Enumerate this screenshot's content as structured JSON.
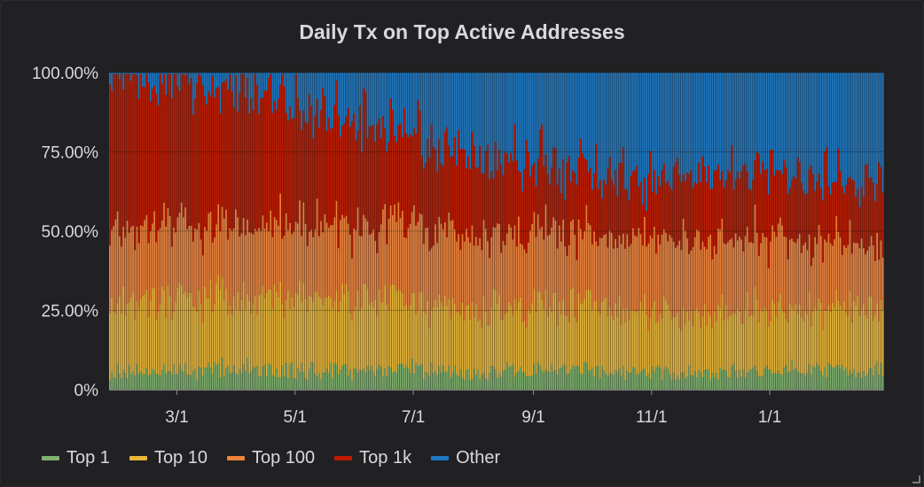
{
  "panel": {
    "title": "Daily Tx on Top Active Addresses"
  },
  "chart_data": {
    "type": "bar",
    "stacked": true,
    "percent": true,
    "title": "Daily Tx on Top Active Addresses",
    "xlabel": "",
    "ylabel": "",
    "ylim": [
      0,
      100
    ],
    "y_ticks": [
      "0%",
      "25.00%",
      "50.00%",
      "75.00%",
      "100.00%"
    ],
    "x_tick_labels": [
      "3/1",
      "5/1",
      "7/1",
      "9/1",
      "11/1",
      "1/1"
    ],
    "x_tick_day_offsets": [
      35,
      96,
      157,
      219,
      280,
      341
    ],
    "days": 400,
    "grid": true,
    "legend_position": "bottom-left",
    "series": [
      {
        "name": "Top 1",
        "color": "#7eb26d",
        "approx_share_percent": 6,
        "profile": [
          5,
          5,
          6,
          5,
          6,
          5,
          6,
          6,
          5,
          6,
          7,
          6
        ]
      },
      {
        "name": "Top 10",
        "color": "#eab839",
        "approx_share_percent": 21,
        "profile": [
          21,
          21,
          20,
          21,
          20,
          19,
          20,
          20,
          19,
          21,
          21,
          21
        ]
      },
      {
        "name": "Top 100",
        "color": "#ef843c",
        "approx_share_percent": 22,
        "profile": [
          22,
          22,
          21,
          21,
          22,
          22,
          23,
          22,
          24,
          24,
          23,
          21
        ]
      },
      {
        "name": "Top 1k",
        "color": "#bf1b00",
        "approx_share_percent": 30,
        "profile": [
          45,
          40,
          36,
          31,
          26,
          21,
          20,
          17,
          18,
          20,
          19,
          17
        ]
      },
      {
        "name": "Other",
        "color": "#1f78c1",
        "approx_share_percent": 21,
        "profile": [
          1,
          5,
          8,
          13,
          18,
          25,
          30,
          33,
          36,
          35,
          37,
          38
        ]
      }
    ]
  }
}
